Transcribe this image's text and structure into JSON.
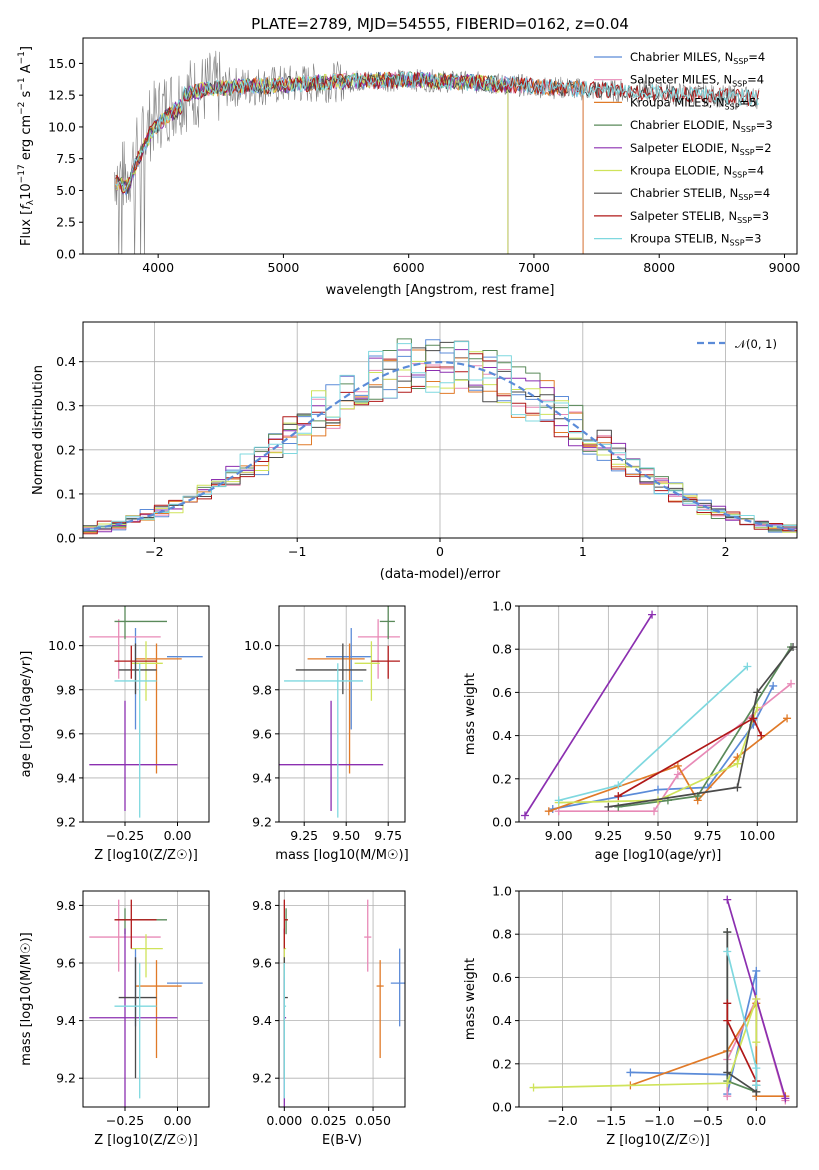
{
  "figure_title": "PLATE=2789, MJD=54555, FIBERID=0162, z=0.04",
  "colors": {
    "Chabrier MILES": "#5b8bd8",
    "Salpeter MILES": "#e88ab7",
    "Kroupa MILES": "#e07a28",
    "Chabrier ELODIE": "#5a8a5a",
    "Salpeter ELODIE": "#8b2fb0",
    "Kroupa ELODIE": "#cfe35a",
    "Chabrier STELIB": "#4a4a4a",
    "Salpeter STELIB": "#b01818",
    "Kroupa STELIB": "#7fd8df",
    "normal": "#5b8bd8"
  },
  "chart_data": [
    {
      "panel": "spectrum",
      "type": "line",
      "title": "PLATE=2789, MJD=54555, FIBERID=0162, z=0.04",
      "xlabel": "wavelength [Angstrom, rest frame]",
      "ylabel": "Flux [f_λ 10^-17 erg cm^-2 s^-1 A^-1]",
      "xlim": [
        3400,
        9100
      ],
      "ylim": [
        0,
        17
      ],
      "xticks": [
        4000,
        5000,
        6000,
        7000,
        8000,
        9000
      ],
      "yticks": [
        0.0,
        2.5,
        5.0,
        7.5,
        10.0,
        12.5,
        15.0
      ],
      "grid": false,
      "legend_position": "top-right",
      "data_color": "#808080",
      "continuum": [
        [
          3650,
          6.5
        ],
        [
          3750,
          6.0
        ],
        [
          3850,
          8.5
        ],
        [
          3950,
          10.5
        ],
        [
          4050,
          11.5
        ],
        [
          4200,
          12.5
        ],
        [
          4400,
          13.0
        ],
        [
          4700,
          13.2
        ],
        [
          5000,
          13.3
        ],
        [
          5500,
          13.6
        ],
        [
          6000,
          13.7
        ],
        [
          6500,
          13.5
        ],
        [
          7000,
          13.2
        ],
        [
          7500,
          12.9
        ],
        [
          8000,
          12.7
        ],
        [
          8500,
          12.4
        ],
        [
          8800,
          12.3
        ]
      ],
      "series": [
        {
          "name": "Chabrier MILES, N_SSP=4",
          "end_x": 7400
        },
        {
          "name": "Salpeter MILES, N_SSP=4",
          "end_x": 7400
        },
        {
          "name": "Kroupa MILES, N_SSP=5",
          "end_x": 7400
        },
        {
          "name": "Chabrier ELODIE, N_SSP=3",
          "end_x": 6800
        },
        {
          "name": "Salpeter ELODIE, N_SSP=2",
          "end_x": 6800
        },
        {
          "name": "Kroupa ELODIE, N_SSP=4",
          "end_x": 6800
        },
        {
          "name": "Chabrier STELIB, N_SSP=4",
          "end_x": 8800
        },
        {
          "name": "Salpeter STELIB, N_SSP=3",
          "end_x": 8800
        },
        {
          "name": "Kroupa STELIB, N_SSP=3",
          "end_x": 8800
        }
      ]
    },
    {
      "panel": "residuals",
      "type": "line",
      "xlabel": "(data-model)/error",
      "ylabel": "Normed distribution",
      "xlim": [
        -2.5,
        2.5
      ],
      "ylim": [
        0,
        0.49
      ],
      "xticks": [
        -2,
        -1,
        0,
        1,
        2
      ],
      "yticks": [
        0.0,
        0.1,
        0.2,
        0.3,
        0.4
      ],
      "grid": true,
      "legend_position": "top-right",
      "reference_curve": {
        "name": "𝒩(0, 1)",
        "mean": 0,
        "sigma": 1
      },
      "histogram_bin_width": 0.1
    },
    {
      "panel": "age_vs_Z",
      "type": "scatter",
      "xlabel": "Z [log10(Z/Z☉)]",
      "ylabel": "age [log10(age/yr)]",
      "xlim": [
        -0.45,
        0.15
      ],
      "ylim": [
        9.2,
        10.18
      ],
      "xticks": [
        -0.25,
        0.0
      ],
      "yticks": [
        9.2,
        9.4,
        9.6,
        9.8,
        10.0
      ],
      "grid": true
    },
    {
      "panel": "age_vs_mass",
      "type": "scatter",
      "xlabel": "mass [log10(M/M☉)]",
      "xlim": [
        9.1,
        9.85
      ],
      "ylim": [
        9.2,
        10.18
      ],
      "xticks": [
        9.25,
        9.5,
        9.75
      ],
      "yticks": [
        9.2,
        9.4,
        9.6,
        9.8,
        10.0
      ],
      "grid": true
    },
    {
      "panel": "weight_vs_age",
      "type": "line",
      "xlabel": "age [log10(age/yr)]",
      "ylabel": "mass weight",
      "xlim": [
        8.8,
        10.2
      ],
      "ylim": [
        0,
        1.0
      ],
      "xticks": [
        9.0,
        9.25,
        9.5,
        9.75,
        10.0
      ],
      "yticks": [
        0.0,
        0.2,
        0.4,
        0.6,
        0.8,
        1.0
      ],
      "grid": true
    },
    {
      "panel": "mass_vs_Z",
      "type": "scatter",
      "xlabel": "Z [log10(Z/Z☉)]",
      "ylabel": "mass [log10(M/M☉)]",
      "xlim": [
        -0.45,
        0.15
      ],
      "ylim": [
        9.1,
        9.85
      ],
      "xticks": [
        -0.25,
        0.0
      ],
      "yticks": [
        9.2,
        9.4,
        9.6,
        9.8
      ],
      "grid": true
    },
    {
      "panel": "mass_vs_EBV",
      "type": "scatter",
      "xlabel": "E(B-V)",
      "xlim": [
        -0.003,
        0.068
      ],
      "ylim": [
        9.1,
        9.85
      ],
      "xticks": [
        0.0,
        0.025,
        0.05
      ],
      "yticks": [
        9.2,
        9.4,
        9.6,
        9.8
      ],
      "grid": true
    },
    {
      "panel": "weight_vs_Z",
      "type": "line",
      "xlabel": "Z [log10(Z/Z☉)]",
      "ylabel": "mass weight",
      "xlim": [
        -2.45,
        0.42
      ],
      "ylim": [
        0,
        1.0
      ],
      "xticks": [
        -2.0,
        -1.5,
        -1.0,
        -0.5,
        0.0
      ],
      "yticks": [
        0.0,
        0.2,
        0.4,
        0.6,
        0.8,
        1.0
      ],
      "grid": true
    }
  ],
  "fits": [
    {
      "name": "Chabrier MILES",
      "age": [
        9.95,
        9.62,
        10.08
      ],
      "Z": [
        -0.2,
        -0.05,
        0.12
      ],
      "mass": [
        9.53,
        9.38,
        9.65
      ],
      "ebv": [
        0.065,
        0.06,
        0.07
      ],
      "wx": [
        8.97,
        9.5,
        9.75,
        9.98,
        10.08
      ],
      "wy": [
        0.06,
        0.15,
        0.16,
        0.45,
        0.63
      ],
      "zx": [
        -1.3,
        -0.3,
        -0.3,
        0.0,
        0.0
      ],
      "zy": [
        0.16,
        0.15,
        0.06,
        0.63,
        0.05
      ]
    },
    {
      "name": "Salpeter MILES",
      "age": [
        10.04,
        9.85,
        10.12
      ],
      "Z": [
        -0.28,
        -0.42,
        -0.08
      ],
      "mass": [
        9.69,
        9.57,
        9.82
      ],
      "ebv": [
        0.047,
        0.045,
        0.049
      ],
      "wx": [
        9.0,
        9.48,
        9.6,
        10.17
      ],
      "wy": [
        0.05,
        0.05,
        0.22,
        0.64
      ],
      "zx": [
        -0.3,
        -0.3,
        0.0,
        0.3
      ],
      "zy": [
        0.05,
        0.22,
        0.5,
        0.03
      ]
    },
    {
      "name": "Kroupa MILES",
      "age": [
        9.94,
        9.42,
        10.01
      ],
      "Z": [
        -0.1,
        -0.2,
        0.02
      ],
      "mass": [
        9.52,
        9.27,
        9.61
      ],
      "ebv": [
        0.054,
        0.052,
        0.056
      ],
      "wx": [
        8.95,
        9.6,
        9.7,
        9.9,
        10.15
      ],
      "wy": [
        0.05,
        0.26,
        0.1,
        0.3,
        0.48
      ],
      "zx": [
        -1.3,
        -0.3,
        0.0,
        0.0,
        0.3
      ],
      "zy": [
        0.1,
        0.26,
        0.48,
        0.05,
        0.05
      ]
    },
    {
      "name": "Chabrier ELODIE",
      "age": [
        10.11,
        10.03,
        10.18
      ],
      "Z": [
        -0.25,
        -0.3,
        -0.05
      ],
      "mass": [
        9.75,
        9.7,
        9.79
      ],
      "ebv": [
        0.001,
        0.0,
        0.002
      ],
      "wx": [
        9.3,
        9.55,
        9.7,
        10.17
      ],
      "wy": [
        0.07,
        0.1,
        0.12,
        0.81
      ],
      "zx": [
        -0.3,
        -0.3,
        0.0
      ],
      "zy": [
        0.81,
        0.12,
        0.07
      ]
    },
    {
      "name": "Salpeter ELODIE",
      "age": [
        9.46,
        9.25,
        9.75
      ],
      "Z": [
        -0.25,
        -0.42,
        0.0
      ],
      "mass": [
        9.41,
        9.1,
        9.72
      ],
      "ebv": [
        0.0,
        0.0,
        0.001
      ],
      "wx": [
        8.83,
        9.47
      ],
      "wy": [
        0.03,
        0.96
      ],
      "zx": [
        -0.3,
        0.3
      ],
      "zy": [
        0.96,
        0.04
      ]
    },
    {
      "name": "Kroupa ELODIE",
      "age": [
        9.92,
        9.75,
        10.02
      ],
      "Z": [
        -0.15,
        -0.22,
        -0.07
      ],
      "mass": [
        9.65,
        9.55,
        9.7
      ],
      "ebv": [
        0.0,
        0.0,
        0.001
      ],
      "wx": [
        9.0,
        9.5,
        9.9,
        10.0
      ],
      "wy": [
        0.09,
        0.1,
        0.27,
        0.53
      ],
      "zx": [
        -2.3,
        -0.3,
        0.0,
        0.0
      ],
      "zy": [
        0.09,
        0.11,
        0.5,
        0.3
      ]
    },
    {
      "name": "Chabrier STELIB",
      "age": [
        9.89,
        9.78,
        10.01
      ],
      "Z": [
        -0.2,
        -0.28,
        -0.1
      ],
      "mass": [
        9.48,
        9.2,
        9.62
      ],
      "ebv": [
        0.0,
        0.0,
        0.002
      ],
      "wx": [
        9.25,
        9.9,
        10.0,
        10.18
      ],
      "wy": [
        0.07,
        0.16,
        0.6,
        0.81
      ],
      "zx": [
        -0.3,
        -0.3,
        0.0,
        0.0
      ],
      "zy": [
        0.81,
        0.16,
        0.07,
        0.1
      ]
    },
    {
      "name": "Salpeter STELIB",
      "age": [
        9.93,
        9.85,
        10.0
      ],
      "Z": [
        -0.22,
        -0.3,
        -0.1
      ],
      "mass": [
        9.75,
        9.65,
        9.82
      ],
      "ebv": [
        0.0,
        0.0,
        0.002
      ],
      "wx": [
        9.3,
        9.98,
        10.02
      ],
      "wy": [
        0.12,
        0.48,
        0.4
      ],
      "zx": [
        -0.3,
        -0.3,
        0.0
      ],
      "zy": [
        0.48,
        0.4,
        0.12
      ]
    },
    {
      "name": "Kroupa STELIB",
      "age": [
        9.84,
        9.22,
        9.92
      ],
      "Z": [
        -0.18,
        -0.3,
        -0.1
      ],
      "mass": [
        9.45,
        9.13,
        9.6
      ],
      "ebv": [
        0.0,
        0.0,
        0.001
      ],
      "wx": [
        9.0,
        9.3,
        9.95
      ],
      "wy": [
        0.1,
        0.17,
        0.72
      ],
      "zx": [
        -0.3,
        0.0,
        0.0
      ],
      "zy": [
        0.72,
        0.18,
        0.1
      ]
    }
  ]
}
